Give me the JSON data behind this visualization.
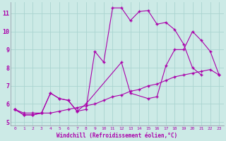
{
  "xlabel": "Windchill (Refroidissement éolien,°C)",
  "bg_color": "#cceae6",
  "grid_color": "#aad4d0",
  "line_color": "#aa00aa",
  "xlim_min": -0.5,
  "xlim_max": 23.5,
  "ylim_min": 4.8,
  "ylim_max": 11.6,
  "xticks": [
    0,
    1,
    2,
    3,
    4,
    5,
    6,
    7,
    8,
    9,
    10,
    11,
    12,
    13,
    14,
    15,
    16,
    17,
    18,
    19,
    20,
    21,
    22,
    23
  ],
  "yticks": [
    5,
    6,
    7,
    8,
    9,
    10,
    11
  ],
  "s1_x": [
    0,
    1,
    2,
    3,
    4,
    5,
    6,
    7,
    8,
    9,
    10,
    11,
    12,
    13,
    14,
    15,
    16,
    17,
    18,
    19,
    20,
    21,
    22,
    23
  ],
  "s1_y": [
    5.7,
    5.5,
    5.5,
    5.5,
    5.5,
    5.6,
    5.7,
    5.8,
    5.9,
    6.0,
    6.2,
    6.4,
    6.5,
    6.7,
    6.8,
    7.0,
    7.1,
    7.3,
    7.5,
    7.6,
    7.7,
    7.8,
    7.9,
    7.6
  ],
  "s2_x": [
    0,
    1,
    2,
    3,
    4,
    5,
    6,
    7,
    8,
    9,
    10,
    11,
    12,
    13,
    14,
    15,
    16,
    17,
    18,
    19,
    20,
    21
  ],
  "s2_y": [
    5.7,
    5.4,
    5.4,
    5.5,
    6.6,
    6.3,
    6.2,
    5.6,
    5.7,
    8.9,
    8.3,
    11.3,
    11.3,
    10.6,
    11.1,
    11.15,
    10.4,
    10.5,
    10.1,
    9.3,
    8.0,
    7.6
  ],
  "s3_x": [
    0,
    1,
    2,
    3,
    4,
    5,
    6,
    7,
    8,
    12,
    13,
    15,
    16,
    17,
    18,
    19,
    20,
    21,
    22,
    23
  ],
  "s3_y": [
    5.7,
    5.4,
    5.4,
    5.5,
    6.6,
    6.3,
    6.2,
    5.6,
    6.0,
    8.3,
    6.6,
    6.3,
    6.4,
    8.1,
    9.0,
    9.0,
    10.0,
    9.5,
    8.9,
    7.6
  ]
}
